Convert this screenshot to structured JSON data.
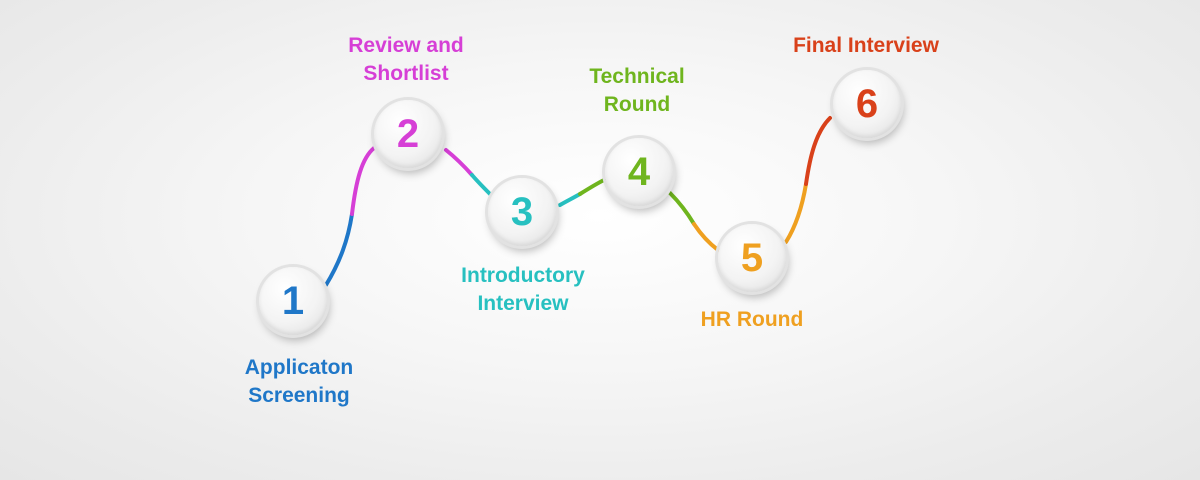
{
  "steps": [
    {
      "number": "1",
      "label_lines": [
        "Applicaton",
        "Screening"
      ],
      "color": "#1f77c8"
    },
    {
      "number": "2",
      "label_lines": [
        "Review and",
        "Shortlist"
      ],
      "color": "#d63fd6"
    },
    {
      "number": "3",
      "label_lines": [
        "Introductory",
        "Interview"
      ],
      "color": "#27c0c0"
    },
    {
      "number": "4",
      "label_lines": [
        "Technical",
        "Round"
      ],
      "color": "#6fb51e"
    },
    {
      "number": "5",
      "label_lines": [
        "HR Round"
      ],
      "color": "#efa020"
    },
    {
      "number": "6",
      "label_lines": [
        "Final Interview"
      ],
      "color": "#d9411a"
    }
  ],
  "connector_colors": {
    "blue": "#1f77c8",
    "magenta": "#d63fd6",
    "teal": "#27c0c0",
    "green": "#6fb51e",
    "orange": "#efa020",
    "red": "#d9411a"
  }
}
